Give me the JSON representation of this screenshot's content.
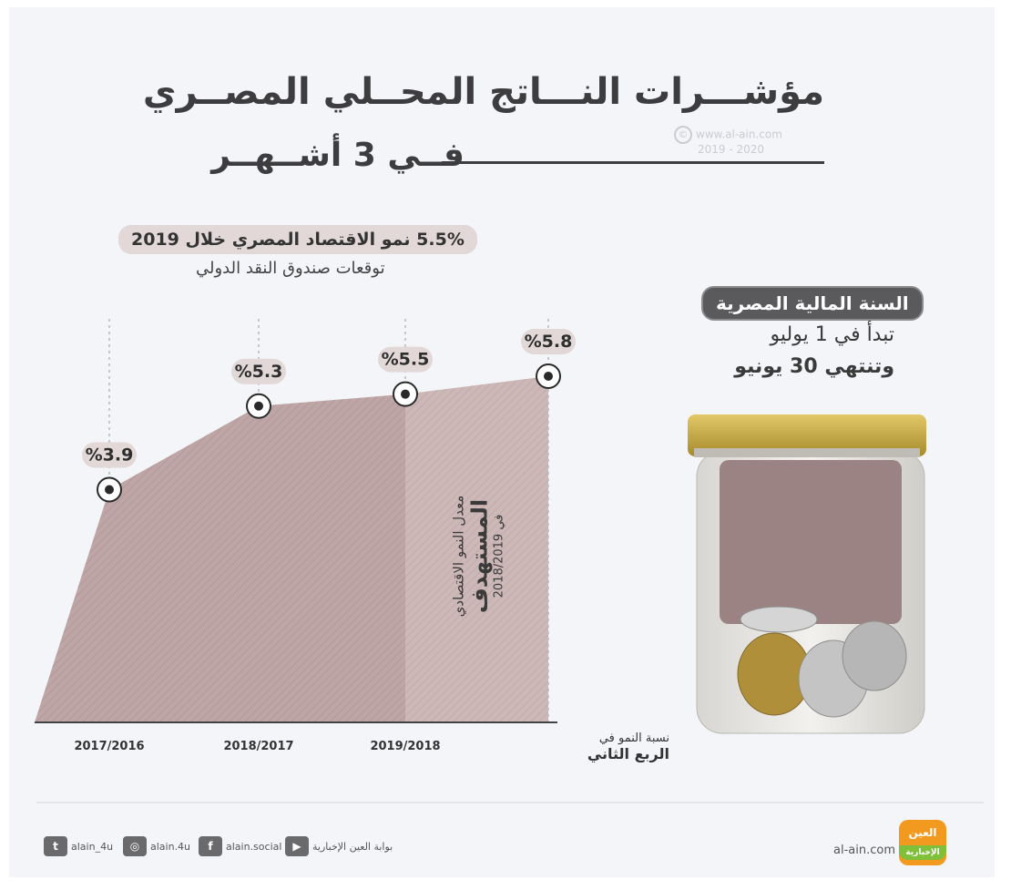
{
  "title": "مؤشـــرات النـــاتج المحــلي المصــري",
  "subtitle": "فــي 3 أشــهــر",
  "watermark": {
    "site": "www.al-ain.com",
    "years": "2019 - 2020"
  },
  "headline": "5.5% نمو الاقتصاد المصري خلال 2019",
  "imf_note": "توقعات صندوق النقد الدولي",
  "fiscal_year": {
    "heading": "السنة المالية المصرية",
    "line1": "تبدأ في 1 يوليو",
    "line2": "وتنتهي 30 يونيو"
  },
  "target_label": {
    "line1": "معدل النمو الاقتصادي",
    "line2": "المستهدف",
    "line3": "في 2018/2019"
  },
  "axis_note": {
    "line1": "نسبة النمو في",
    "line2": "الربع الثاني"
  },
  "chart_data": {
    "type": "area",
    "categories": [
      "2017/2016",
      "2018/2017",
      "2019/2018",
      ""
    ],
    "values": [
      3.9,
      5.3,
      5.5,
      5.8
    ],
    "value_labels": [
      "%3.9",
      "%5.3",
      "%5.5",
      "%5.8"
    ],
    "highlight_last_segment": true,
    "colors": {
      "area": "#bfa6a6",
      "area_target": "#cdb8b8",
      "marker": "#2a2a2a"
    }
  },
  "footer": {
    "twitter": "alain_4u",
    "instagram": "alain.4u",
    "facebook": "alain.social",
    "youtube": "بوابة العين الإخبارية",
    "site": "al-ain.com",
    "logo_top": "العين",
    "logo_bottom": "الإخبارية"
  }
}
